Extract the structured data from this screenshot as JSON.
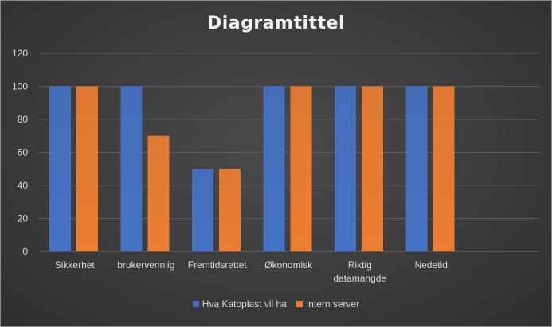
{
  "chart_data": {
    "type": "bar",
    "title": "Diagramtittel",
    "categories": [
      "Sikkerhet",
      "brukervennlig",
      "Fremtidsrettet",
      "Økonomisk",
      "Riktig datamangde",
      "Nedetid"
    ],
    "category_lines": [
      [
        "Sikkerhet"
      ],
      [
        "brukervennlig"
      ],
      [
        "Fremtidsrettet"
      ],
      [
        "Økonomisk"
      ],
      [
        "Riktig",
        "datamangde"
      ],
      [
        "Nedetid"
      ]
    ],
    "series": [
      {
        "name": "Hva Katoplast vil ha",
        "values": [
          100,
          100,
          50,
          100,
          100,
          100
        ],
        "color": "#4472c4"
      },
      {
        "name": "Intern server",
        "values": [
          100,
          70,
          50,
          100,
          100,
          100
        ],
        "color": "#ed7d31"
      }
    ],
    "ylim": [
      0,
      120
    ],
    "yticks": [
      0,
      20,
      40,
      60,
      80,
      100,
      120
    ],
    "grid": true,
    "legend_position": "bottom"
  }
}
